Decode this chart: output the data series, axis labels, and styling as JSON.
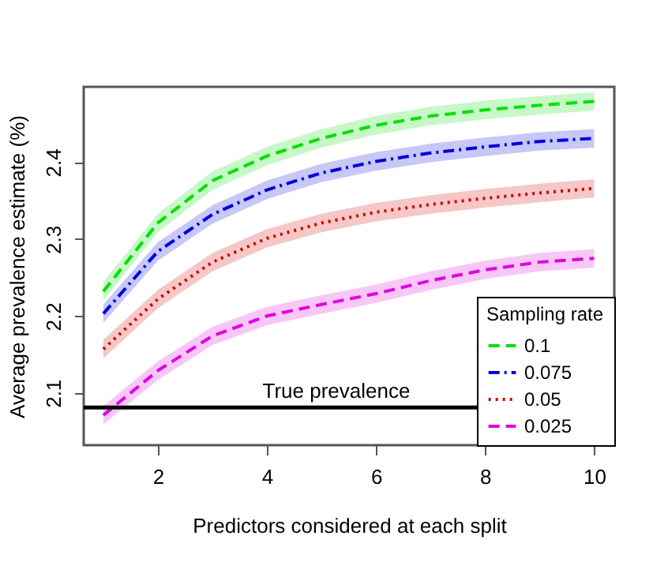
{
  "chart_data": {
    "type": "line",
    "xlabel": "Predictors considered at each split",
    "ylabel": "Average prevalence estimate (%)",
    "legend_title": "Sampling rate",
    "x": [
      1,
      2,
      3,
      4,
      5,
      6,
      7,
      8,
      9,
      10
    ],
    "series": [
      {
        "name": "0.1",
        "color": "#00e000",
        "line_style": "dashed",
        "values": [
          2.232,
          2.321,
          2.376,
          2.408,
          2.431,
          2.448,
          2.46,
          2.468,
          2.474,
          2.479
        ],
        "lower": [
          2.22,
          2.309,
          2.364,
          2.396,
          2.419,
          2.436,
          2.448,
          2.456,
          2.462,
          2.467
        ],
        "upper": [
          2.244,
          2.333,
          2.388,
          2.42,
          2.443,
          2.46,
          2.472,
          2.48,
          2.486,
          2.491
        ]
      },
      {
        "name": "0.075",
        "color": "#0000e0",
        "line_style": "dashdot",
        "values": [
          2.203,
          2.284,
          2.332,
          2.364,
          2.386,
          2.401,
          2.412,
          2.42,
          2.427,
          2.431
        ],
        "lower": [
          2.191,
          2.272,
          2.32,
          2.352,
          2.374,
          2.389,
          2.4,
          2.408,
          2.415,
          2.419
        ],
        "upper": [
          2.215,
          2.296,
          2.344,
          2.376,
          2.398,
          2.413,
          2.424,
          2.432,
          2.439,
          2.443
        ]
      },
      {
        "name": "0.05",
        "color": "#d00000",
        "line_style": "dotted",
        "values": [
          2.157,
          2.222,
          2.27,
          2.301,
          2.321,
          2.335,
          2.345,
          2.353,
          2.36,
          2.366
        ],
        "lower": [
          2.145,
          2.21,
          2.258,
          2.289,
          2.309,
          2.323,
          2.333,
          2.341,
          2.348,
          2.354
        ],
        "upper": [
          2.169,
          2.234,
          2.282,
          2.313,
          2.333,
          2.347,
          2.357,
          2.365,
          2.372,
          2.378
        ]
      },
      {
        "name": "0.025",
        "color": "#e000e0",
        "line_style": "dashed",
        "values": [
          2.071,
          2.129,
          2.174,
          2.2,
          2.215,
          2.229,
          2.246,
          2.26,
          2.27,
          2.275
        ],
        "lower": [
          2.059,
          2.117,
          2.162,
          2.188,
          2.203,
          2.217,
          2.234,
          2.248,
          2.258,
          2.263
        ],
        "upper": [
          2.083,
          2.141,
          2.186,
          2.212,
          2.227,
          2.241,
          2.258,
          2.272,
          2.282,
          2.287
        ]
      }
    ],
    "xlim": [
      0.64,
      10.37
    ],
    "xticks": [
      2,
      4,
      6,
      8,
      10
    ],
    "ylim": [
      2.032,
      2.498
    ],
    "yticks": [
      2.1,
      2.2,
      2.3,
      2.4
    ],
    "ref_lines": [
      {
        "axis": "y",
        "value": 2.081,
        "label": "True prevalence",
        "color": "#000000"
      }
    ],
    "grid": false,
    "legend": "bottom right",
    "marker": "none"
  }
}
